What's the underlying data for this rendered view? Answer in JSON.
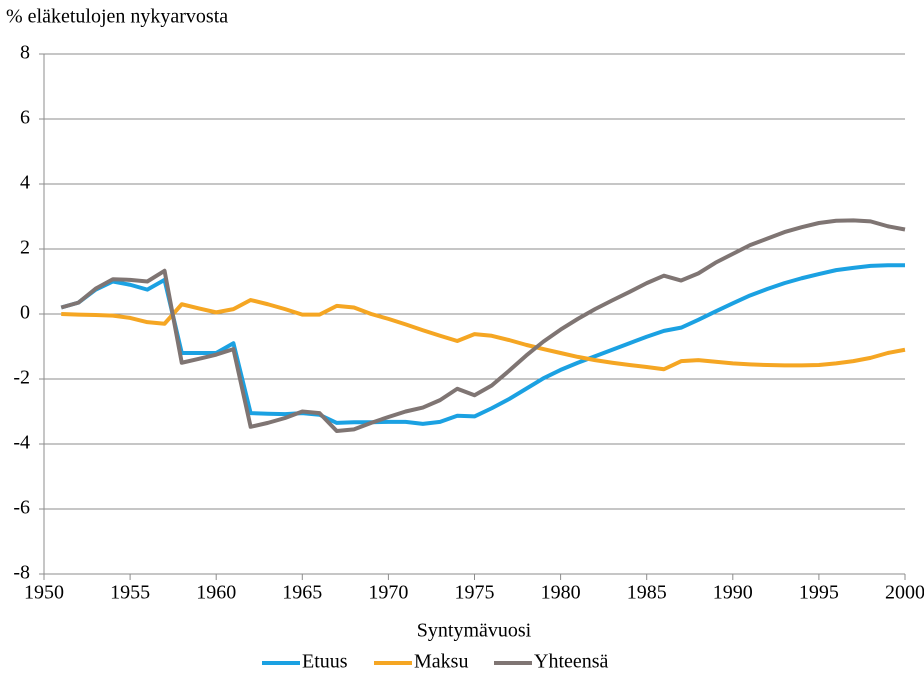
{
  "chart_data": {
    "type": "line",
    "y_label": "% eläketulojen nykyarvosta",
    "x_label": "Syntymävuosi",
    "x": [
      1951,
      1952,
      1953,
      1954,
      1955,
      1956,
      1957,
      1958,
      1959,
      1960,
      1961,
      1962,
      1963,
      1964,
      1965,
      1966,
      1967,
      1968,
      1969,
      1970,
      1971,
      1972,
      1973,
      1974,
      1975,
      1976,
      1977,
      1978,
      1979,
      1980,
      1981,
      1982,
      1983,
      1984,
      1985,
      1986,
      1987,
      1988,
      1989,
      1990,
      1991,
      1992,
      1993,
      1994,
      1995,
      1996,
      1997,
      1998,
      1999,
      2000
    ],
    "series": [
      {
        "name": "Etuus",
        "color": "#1ba1e2",
        "values": [
          0.2,
          0.35,
          0.75,
          1.0,
          0.9,
          0.75,
          1.05,
          -1.2,
          -1.2,
          -1.2,
          -0.9,
          -3.05,
          -3.07,
          -3.08,
          -3.05,
          -3.1,
          -3.35,
          -3.33,
          -3.33,
          -3.32,
          -3.32,
          -3.38,
          -3.32,
          -3.13,
          -3.15,
          -2.9,
          -2.62,
          -2.3,
          -1.98,
          -1.72,
          -1.5,
          -1.3,
          -1.1,
          -0.9,
          -0.7,
          -0.52,
          -0.42,
          -0.18,
          0.08,
          0.33,
          0.57,
          0.77,
          0.95,
          1.1,
          1.23,
          1.35,
          1.42,
          1.48,
          1.5,
          1.5
        ]
      },
      {
        "name": "Maksu",
        "color": "#f5a623",
        "values": [
          0,
          -0.02,
          -0.03,
          -0.05,
          -0.12,
          -0.25,
          -0.3,
          0.3,
          0.17,
          0.05,
          0.15,
          0.43,
          0.3,
          0.15,
          -0.02,
          -0.02,
          0.25,
          0.2,
          0.0,
          -0.15,
          -0.32,
          -0.5,
          -0.67,
          -0.83,
          -0.62,
          -0.67,
          -0.8,
          -0.95,
          -1.08,
          -1.2,
          -1.32,
          -1.42,
          -1.5,
          -1.57,
          -1.63,
          -1.7,
          -1.45,
          -1.42,
          -1.47,
          -1.52,
          -1.55,
          -1.57,
          -1.58,
          -1.58,
          -1.57,
          -1.52,
          -1.45,
          -1.35,
          -1.2,
          -1.1
        ]
      },
      {
        "name": "Yhteensä",
        "color": "#7f7573",
        "values": [
          0.2,
          0.35,
          0.78,
          1.07,
          1.05,
          1.0,
          1.33,
          -1.5,
          -1.38,
          -1.25,
          -1.08,
          -3.47,
          -3.35,
          -3.2,
          -3.0,
          -3.05,
          -3.6,
          -3.55,
          -3.35,
          -3.17,
          -3.0,
          -2.88,
          -2.65,
          -2.3,
          -2.5,
          -2.2,
          -1.75,
          -1.28,
          -0.85,
          -0.48,
          -0.15,
          0.15,
          0.42,
          0.68,
          0.95,
          1.18,
          1.03,
          1.25,
          1.58,
          1.85,
          2.12,
          2.32,
          2.52,
          2.67,
          2.8,
          2.87,
          2.88,
          2.85,
          2.7,
          2.6
        ]
      }
    ],
    "xlim": [
      1950,
      2000
    ],
    "xticks": [
      1950,
      1955,
      1960,
      1965,
      1970,
      1975,
      1980,
      1985,
      1990,
      1995,
      2000
    ],
    "ylim": [
      -8,
      8
    ],
    "yticks": [
      -8,
      -6,
      -4,
      -2,
      0,
      2,
      4,
      6,
      8
    ],
    "grid": true,
    "legend": "bottom"
  }
}
